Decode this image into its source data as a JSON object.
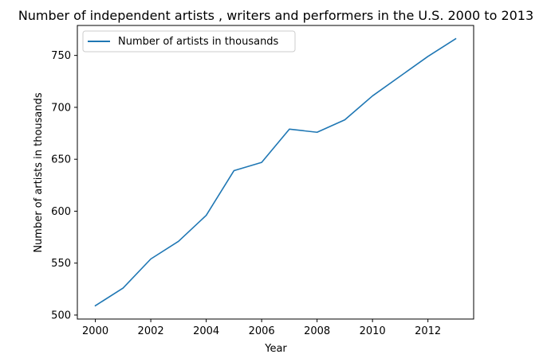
{
  "chart_data": {
    "type": "line",
    "title": "Number of independent artists , writers and performers in the U.S. 2000 to 2013",
    "xlabel": "Year",
    "ylabel": "Number of artists in thousands",
    "x": [
      2000,
      2001,
      2002,
      2003,
      2004,
      2005,
      2006,
      2007,
      2008,
      2009,
      2010,
      2011,
      2012,
      2013
    ],
    "series": [
      {
        "name": "Number of artists in thousands",
        "color": "#1f77b4",
        "values": [
          509,
          526,
          554,
          571,
          596,
          639,
          647,
          679,
          676,
          688,
          711,
          730,
          749,
          766
        ]
      }
    ],
    "xticks": [
      2000,
      2002,
      2004,
      2006,
      2008,
      2010,
      2012
    ],
    "yticks": [
      500,
      550,
      600,
      650,
      700,
      750
    ],
    "xlim": [
      1999.35,
      2013.65
    ],
    "ylim": [
      496.15,
      778.85
    ],
    "legend_position": "top-left",
    "grid": false
  }
}
